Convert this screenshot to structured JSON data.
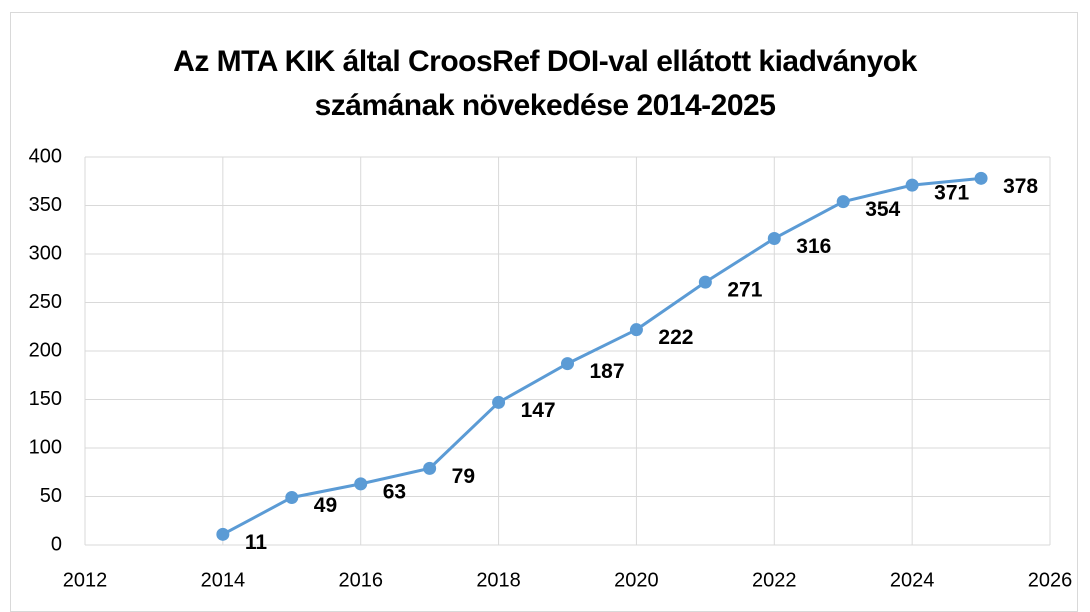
{
  "chart_data": {
    "type": "line",
    "title": "Az MTA KIK által CroosRef DOI-val ellátott kiadványok számának növekedése 2014-2025",
    "x": [
      2014,
      2015,
      2016,
      2017,
      2018,
      2019,
      2020,
      2021,
      2022,
      2023,
      2024,
      2025
    ],
    "values": [
      11,
      49,
      63,
      79,
      147,
      187,
      222,
      271,
      316,
      354,
      371,
      378
    ],
    "color": "#5b9bd5",
    "xlim": [
      2012,
      2026
    ],
    "xticks": [
      2012,
      2014,
      2016,
      2018,
      2020,
      2022,
      2024,
      2026
    ],
    "ylim": [
      0,
      400
    ],
    "yticks": [
      0,
      50,
      100,
      150,
      200,
      250,
      300,
      350,
      400
    ],
    "grid": true
  }
}
